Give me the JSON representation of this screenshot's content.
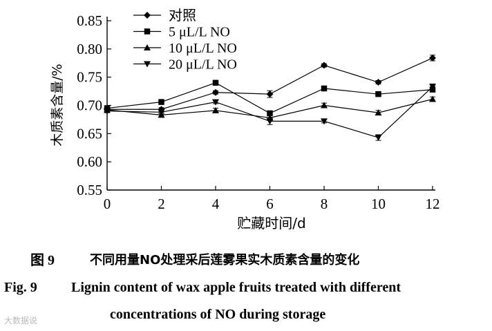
{
  "chart_data": {
    "type": "line",
    "ylabel": "木质素含量/%",
    "xlabel": "贮藏时间/d",
    "xlim": [
      0,
      12
    ],
    "ylim": [
      0.55,
      0.85
    ],
    "xticks": [
      "0",
      "2",
      "4",
      "6",
      "8",
      "10",
      "12"
    ],
    "yticks": [
      "0.55",
      "0.60",
      "0.65",
      "0.70",
      "0.75",
      "0.80",
      "0.85"
    ],
    "x": [
      0,
      2,
      4,
      6,
      8,
      10,
      12
    ],
    "legend_position": "top-left",
    "series": [
      {
        "name": "对照",
        "marker": "diamond",
        "values": [
          0.693,
          0.693,
          0.723,
          0.72,
          0.771,
          0.741,
          0.784
        ],
        "errors": [
          0.003,
          0.003,
          0.003,
          0.006,
          0.003,
          0.003,
          0.005
        ]
      },
      {
        "name": "5 μL/L NO",
        "marker": "square",
        "values": [
          0.695,
          0.706,
          0.74,
          0.686,
          0.73,
          0.72,
          0.728
        ],
        "errors": [
          0.003,
          0.003,
          0.003,
          0.004,
          0.004,
          0.004,
          0.004
        ]
      },
      {
        "name": "10 μL/L NO",
        "marker": "triangle-up",
        "values": [
          0.692,
          0.683,
          0.691,
          0.678,
          0.7,
          0.687,
          0.711
        ],
        "errors": [
          0.003,
          0.004,
          0.004,
          0.004,
          0.004,
          0.004,
          0.004
        ]
      },
      {
        "name": "20 μL/L NO",
        "marker": "triangle-down",
        "values": [
          0.69,
          0.688,
          0.706,
          0.672,
          0.672,
          0.643,
          0.733
        ],
        "errors": [
          0.003,
          0.003,
          0.003,
          0.006,
          0.003,
          0.005,
          0.005
        ]
      }
    ]
  },
  "caption": {
    "zh_label": "图 9",
    "zh_text": "不同用量NO处理采后莲雾果实木质素含量的变化",
    "en_label": "Fig. 9",
    "en_line1": "Lignin content of wax apple fruits treated with different",
    "en_line2": "concentrations of NO during storage"
  },
  "watermark": "大数据说"
}
